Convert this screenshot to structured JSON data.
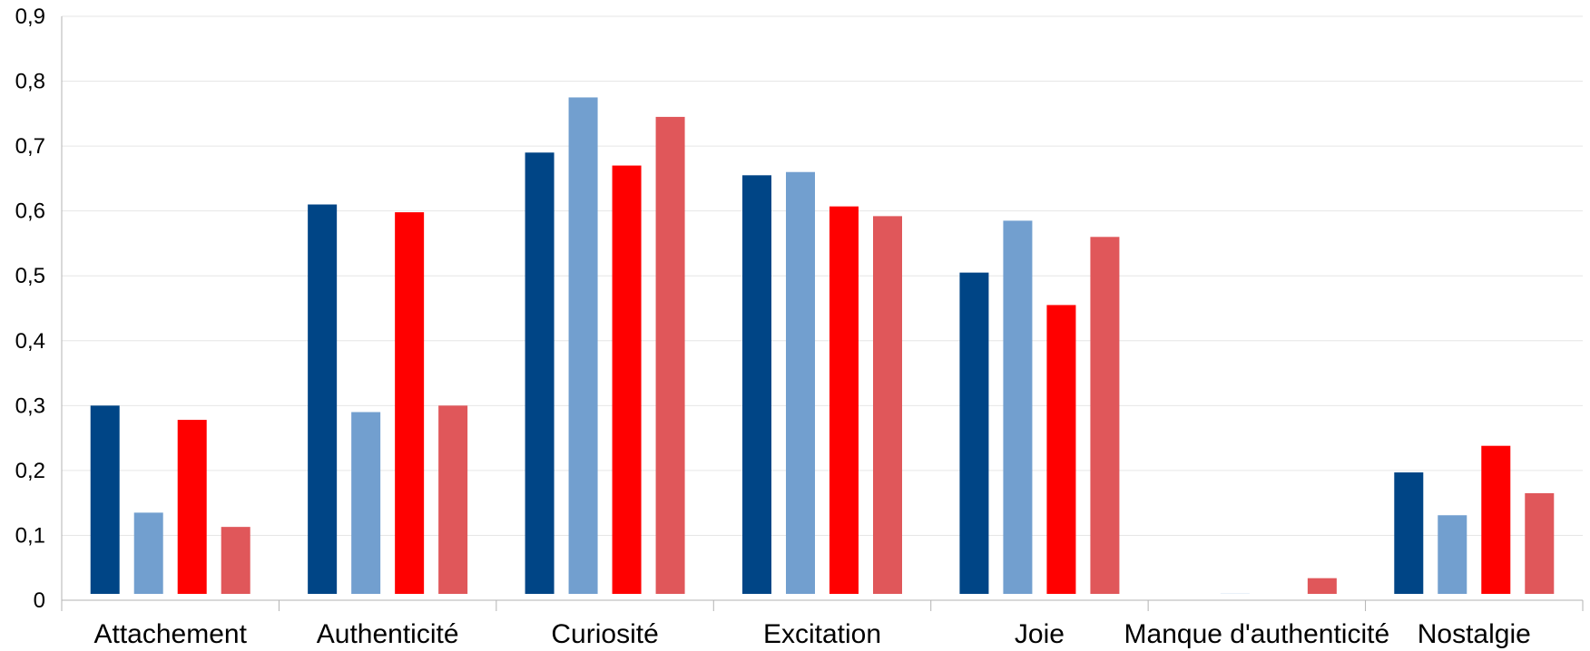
{
  "chart_data": {
    "type": "bar",
    "categories": [
      "Attachement",
      "Authenticité",
      "Curiosité",
      "Excitation",
      "Joie",
      "Manque d'authenticité",
      "Nostalgie"
    ],
    "series": [
      {
        "color": "#004586",
        "values": [
          0.3,
          0.61,
          0.69,
          0.655,
          0.505,
          0,
          0.197
        ]
      },
      {
        "color": "#729fcf",
        "values": [
          0.135,
          0.29,
          0.775,
          0.66,
          0.585,
          0.01,
          0.131
        ]
      },
      {
        "color": "#ff0000",
        "values": [
          0.278,
          0.598,
          0.67,
          0.607,
          0.455,
          0,
          0.238
        ]
      },
      {
        "color": "#e0575a",
        "values": [
          0.113,
          0.3,
          0.745,
          0.592,
          0.56,
          0.034,
          0.165
        ]
      }
    ],
    "yticks": [
      "0",
      "0,1",
      "0,2",
      "0,3",
      "0,4",
      "0,5",
      "0,6",
      "0,7",
      "0,8",
      "0,9"
    ],
    "ylim": [
      0,
      0.9
    ],
    "grid": true,
    "legend": "none"
  }
}
